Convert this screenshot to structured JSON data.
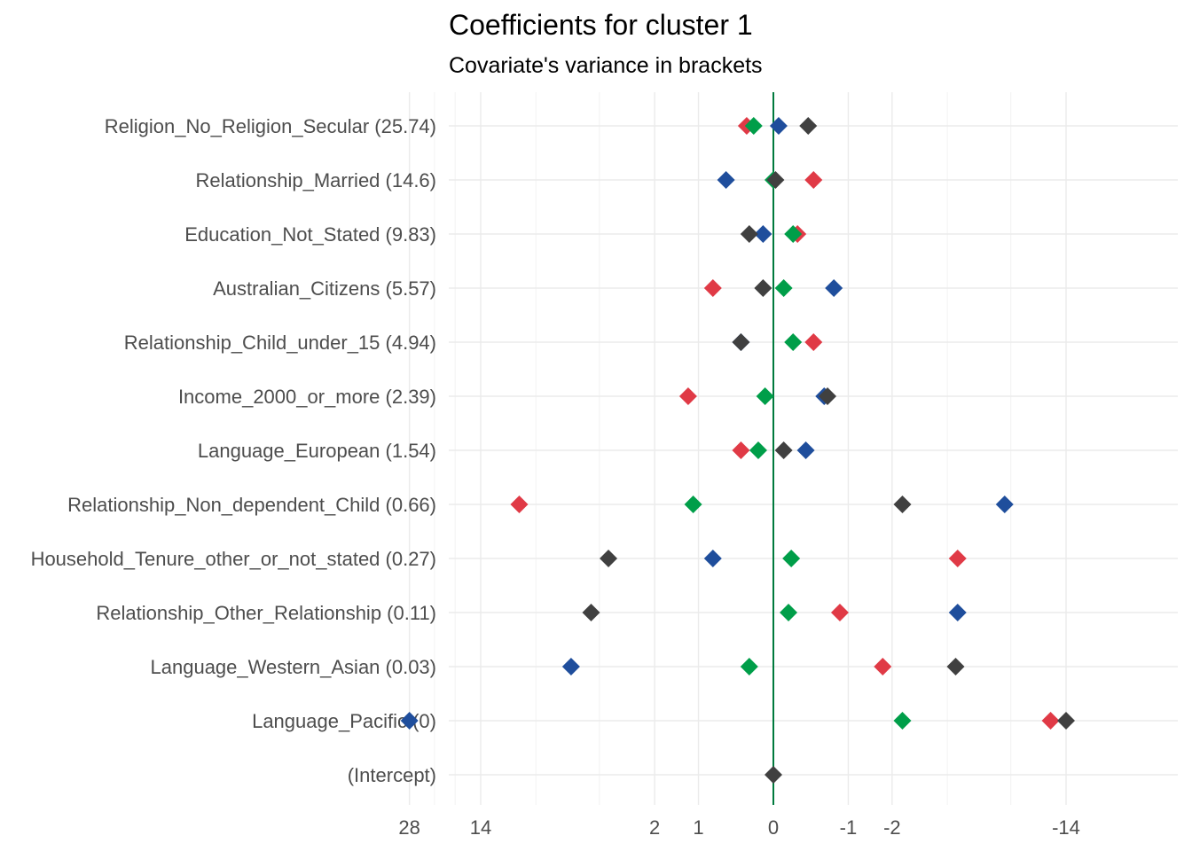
{
  "chart_data": {
    "type": "scatter",
    "title": "Coefficients for cluster 1",
    "subtitle": "Covariate's variance in brackets",
    "xlabel": "",
    "ylabel": "",
    "x_scale": "pseudo-log",
    "xlim": [
      -14,
      28
    ],
    "x_ticks": [
      -14,
      -2,
      -1,
      0,
      1,
      2,
      14,
      28
    ],
    "x_tick_labels": [
      "-14",
      "-2",
      "-1",
      "0",
      "1",
      "2",
      "14",
      "28"
    ],
    "reference_line": {
      "x": 0,
      "color": "#007a3d"
    },
    "grid": true,
    "categories": [
      "Religion_No_Religion_Secular (25.74)",
      "Relationship_Married (14.6)",
      "Education_Not_Stated (9.83)",
      "Australian_Citizens (5.57)",
      "Relationship_Child_under_15 (4.94)",
      "Income_2000_or_more (2.39)",
      "Language_European (1.54)",
      "Relationship_Non_dependent_Child (0.66)",
      "Household_Tenure_other_or_not_stated (0.27)",
      "Relationship_Other_Relationship (0.11)",
      "Language_Western_Asian (0.03)",
      "Language_Pacific (0)",
      "(Intercept)"
    ],
    "series": [
      {
        "color": "#e03a46",
        "values": [
          0.28,
          -0.45,
          -0.25,
          0.75,
          -0.45,
          1.2,
          0.35,
          9.5,
          -4.5,
          -0.85,
          -1.75,
          -12,
          null
        ]
      },
      {
        "color": "#1f4e9c",
        "values": [
          -0.05,
          0.55,
          0.1,
          -0.75,
          0.35,
          -0.6,
          -0.35,
          -7.5,
          0.75,
          -4.5,
          5.5,
          28,
          null
        ]
      },
      {
        "color": "#009e49",
        "values": [
          0.2,
          0.0,
          -0.2,
          -0.1,
          -0.2,
          0.08,
          0.15,
          1.1,
          -0.18,
          -0.15,
          0.25,
          -2.3,
          null
        ]
      },
      {
        "color": "#404040",
        "values": [
          -0.38,
          -0.02,
          0.25,
          0.1,
          0.35,
          -0.65,
          -0.1,
          -2.3,
          3.6,
          4.4,
          -4.4,
          -14,
          0
        ]
      }
    ]
  }
}
